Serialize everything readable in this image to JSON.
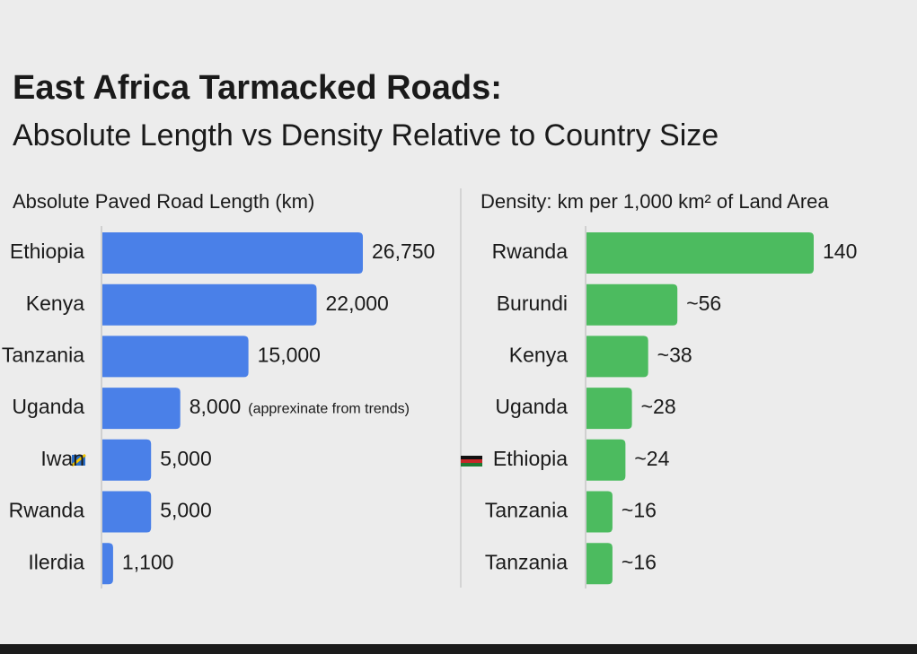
{
  "title": "East Africa Tarmacked Roads:",
  "subtitle": "Absolute Length vs Density Relative to Country Size",
  "chart_data": [
    {
      "type": "bar",
      "orientation": "horizontal",
      "title": "Absolute Paved Road Length (km)",
      "categories": [
        "Ethiopia",
        "Kenya",
        "Tanzania",
        "Uganda",
        "Iwan",
        "Rwanda",
        "Ilerdia"
      ],
      "values": [
        26750,
        22000,
        15000,
        8000,
        5000,
        5000,
        1100
      ],
      "value_labels": [
        "26,750",
        "22,000",
        "15,000",
        "8,000",
        "5,000",
        "5,000",
        "1,100"
      ],
      "annotations": [
        {
          "category": 3,
          "text": "(apprexinate from trends)"
        }
      ],
      "color": "#4a80e8"
    },
    {
      "type": "bar",
      "orientation": "horizontal",
      "title": "Density: km per 1,000 km² of Land Area",
      "categories": [
        "Rwanda",
        "Burundi",
        "Kenya",
        "Uganda",
        "Ethiopia",
        "Tanzania",
        "Tanzania"
      ],
      "values": [
        140,
        56,
        38,
        28,
        24,
        16,
        16
      ],
      "value_labels": [
        "140",
        "~56",
        "~38",
        "~28",
        "~24",
        "~16",
        "~16"
      ],
      "color": "#4cbb5f"
    }
  ]
}
